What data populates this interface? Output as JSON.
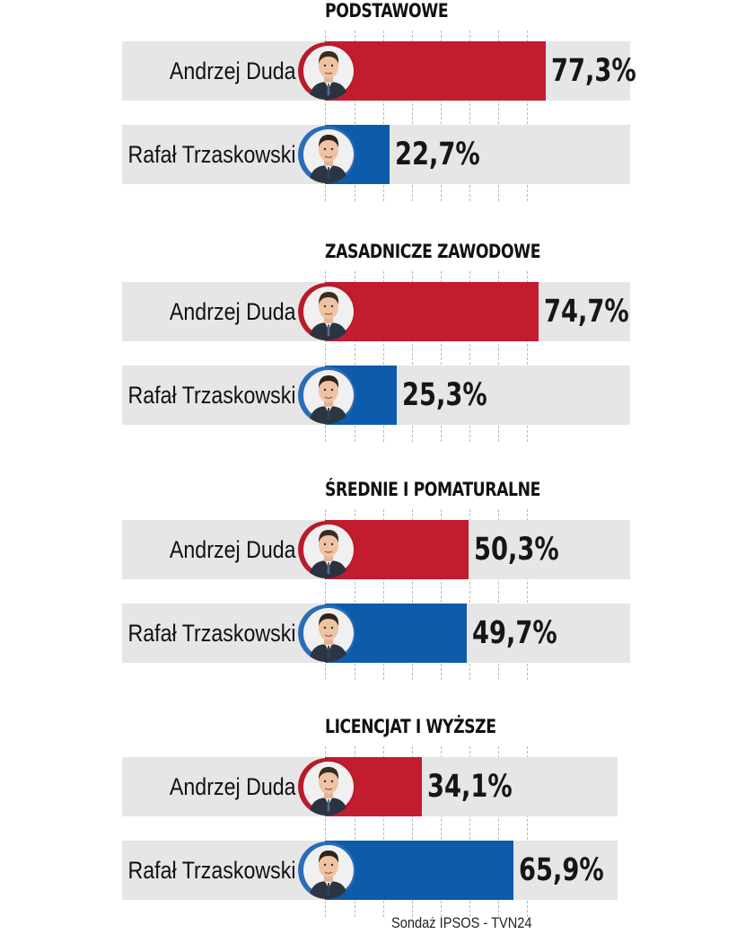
{
  "chart_data": [
    {
      "type": "bar",
      "title": "PODSTAWOWE",
      "categories": [
        "Andrzej Duda",
        "Rafał Trzaskowski"
      ],
      "values": [
        77.3,
        22.7
      ],
      "value_labels": [
        "77,3%",
        "22,7%"
      ],
      "colors": [
        "#c21d2f",
        "#0d5bab"
      ],
      "unit": "%"
    },
    {
      "type": "bar",
      "title": "ZASADNICZE ZAWODOWE",
      "categories": [
        "Andrzej Duda",
        "Rafał Trzaskowski"
      ],
      "values": [
        74.7,
        25.3
      ],
      "value_labels": [
        "74,7%",
        "25,3%"
      ],
      "colors": [
        "#c21d2f",
        "#0d5bab"
      ],
      "unit": "%"
    },
    {
      "type": "bar",
      "title": "ŚREDNIE I POMATURALNE",
      "categories": [
        "Andrzej Duda",
        "Rafał Trzaskowski"
      ],
      "values": [
        50.3,
        49.7
      ],
      "value_labels": [
        "50,3%",
        "49,7%"
      ],
      "colors": [
        "#c21d2f",
        "#0d5bab"
      ],
      "unit": "%"
    },
    {
      "type": "bar",
      "title": "LICENCJAT I WYŻSZE",
      "categories": [
        "Andrzej Duda",
        "Rafał Trzaskowski"
      ],
      "values": [
        34.1,
        65.9
      ],
      "value_labels": [
        "34,1%",
        "65,9%"
      ],
      "colors": [
        "#c21d2f",
        "#0d5bab"
      ],
      "unit": "%"
    }
  ],
  "source": "Sondaż IPSOS - TVN24",
  "icons": [
    "andrzej-duda-portrait-icon",
    "rafal-trzaskowski-portrait-icon"
  ]
}
